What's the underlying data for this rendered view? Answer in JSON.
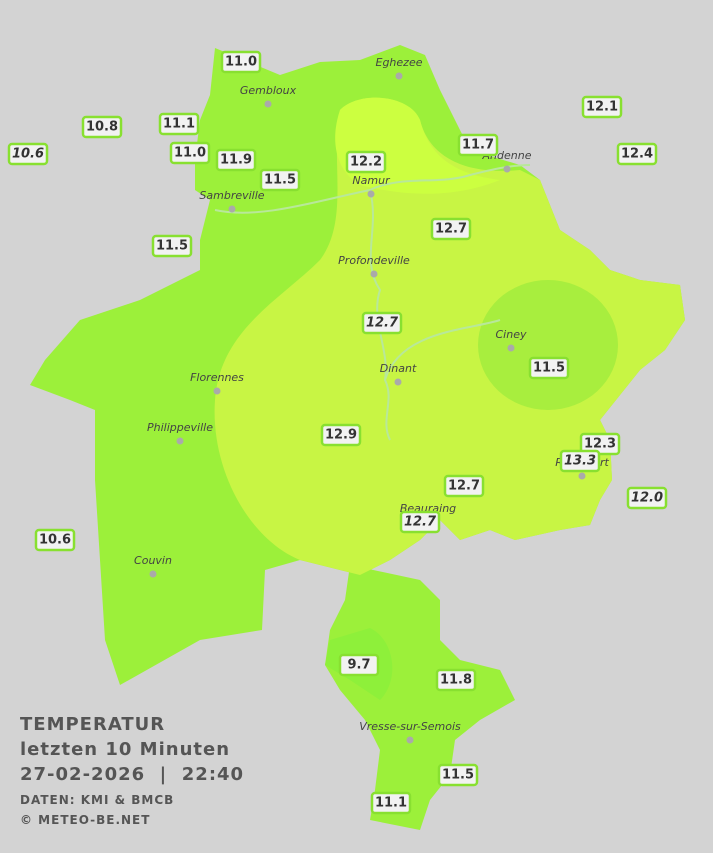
{
  "towns": [
    "Eghezee",
    "Gembloux",
    "Andenne",
    "Namur",
    "Sambreville",
    "Profondeville",
    "Ciney",
    "Dinant",
    "Florennes",
    "Philippeville",
    "Rochefort",
    "Beauraing",
    "Couvin",
    "Vresse-sur-Semois"
  ],
  "stations": [
    "11.0",
    "10.8",
    "11.1",
    "10.6",
    "11.0",
    "11.9",
    "11.5",
    "12.2",
    "11.7",
    "12.1",
    "12.4",
    "11.5",
    "12.7",
    "12.7",
    "11.5",
    "12.9",
    "12.3",
    "13.3",
    "12.0",
    "12.7",
    "12.7",
    "10.6",
    "9.7",
    "11.8",
    "11.5",
    "11.1"
  ],
  "legend": {
    "title": "TEMPERATUR",
    "subtitle": "letzten 10 Minuten",
    "timestamp": "27-02-2026  |  22:40",
    "source": "DATEN: KMI & BMCB",
    "copyright": "© METEO-BE.NET"
  }
}
